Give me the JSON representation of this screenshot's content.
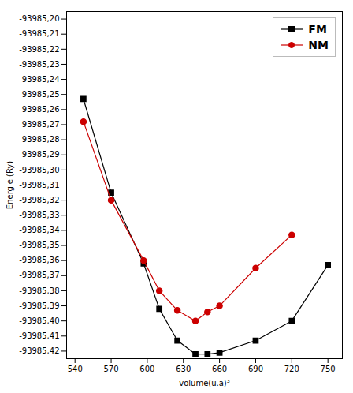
{
  "chart_data": {
    "type": "line",
    "x_label": "volume(u.a)³",
    "y_label": "Energie (Ry)",
    "xlim": [
      533,
      762
    ],
    "ylim": [
      -93985.425,
      -93985.195
    ],
    "xticks": [
      540,
      570,
      600,
      630,
      660,
      690,
      720,
      750
    ],
    "yticks": [
      {
        "value": -93985.2,
        "label": "-93985,20"
      },
      {
        "value": -93985.21,
        "label": "-93985,21"
      },
      {
        "value": -93985.22,
        "label": "-93985,22"
      },
      {
        "value": -93985.23,
        "label": "-93985,23"
      },
      {
        "value": -93985.24,
        "label": "-93985,24"
      },
      {
        "value": -93985.25,
        "label": "-93985,25"
      },
      {
        "value": -93985.26,
        "label": "-93985,26"
      },
      {
        "value": -93985.27,
        "label": "-93985,27"
      },
      {
        "value": -93985.28,
        "label": "-93985,28"
      },
      {
        "value": -93985.29,
        "label": "-93985,29"
      },
      {
        "value": -93985.3,
        "label": "-93985,30"
      },
      {
        "value": -93985.31,
        "label": "-93985,31"
      },
      {
        "value": -93985.32,
        "label": "-93985,32"
      },
      {
        "value": -93985.33,
        "label": "-93985,33"
      },
      {
        "value": -93985.34,
        "label": "-93985,34"
      },
      {
        "value": -93985.35,
        "label": "-93985,35"
      },
      {
        "value": -93985.36,
        "label": "-93985,36"
      },
      {
        "value": -93985.37,
        "label": "-93985,37"
      },
      {
        "value": -93985.38,
        "label": "-93985,38"
      },
      {
        "value": -93985.39,
        "label": "-93985,39"
      },
      {
        "value": -93985.4,
        "label": "-93985,40"
      },
      {
        "value": -93985.41,
        "label": "-93985,41"
      },
      {
        "value": -93985.42,
        "label": "-93985,42"
      }
    ],
    "grid": false,
    "legend": "upper right",
    "series": [
      {
        "name": "FM",
        "color": "#000000",
        "marker": "square",
        "x": [
          547,
          570,
          597,
          610,
          625,
          640,
          650,
          660,
          690,
          720,
          750
        ],
        "values": [
          -93985.253,
          -93985.315,
          -93985.362,
          -93985.392,
          -93985.413,
          -93985.422,
          -93985.422,
          -93985.421,
          -93985.413,
          -93985.4,
          -93985.363
        ]
      },
      {
        "name": "NM",
        "color": "#cc0000",
        "marker": "circle",
        "x": [
          547,
          570,
          597,
          610,
          625,
          640,
          650,
          660,
          690,
          720
        ],
        "values": [
          -93985.268,
          -93985.32,
          -93985.36,
          -93985.38,
          -93985.393,
          -93985.4,
          -93985.394,
          -93985.39,
          -93985.365,
          -93985.343
        ]
      }
    ]
  }
}
